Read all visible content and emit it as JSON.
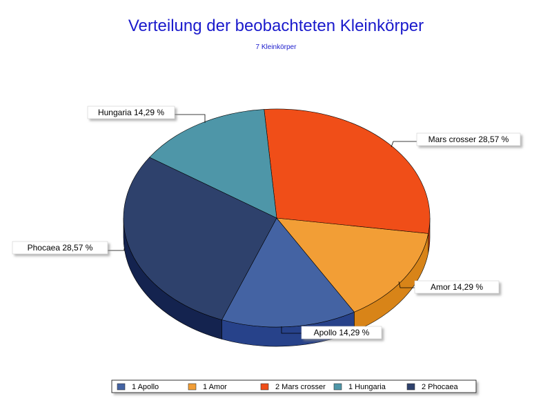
{
  "chart_data": {
    "type": "pie",
    "title": "Verteilung der beobachteten Kleinkörper",
    "subtitle": "7 Kleinkörper",
    "slices": [
      {
        "label": "Apollo 14,29 %",
        "legend": "1 Apollo",
        "value": 1,
        "color": "#4463a3",
        "side_color": "#27428a"
      },
      {
        "label": "Amor 14,29 %",
        "legend": "1 Amor",
        "value": 1,
        "color": "#f29e36",
        "side_color": "#d88418"
      },
      {
        "label": "Mars crosser 28,57 %",
        "legend": "2 Mars crosser",
        "value": 2,
        "color": "#f04e18",
        "side_color": "#c63c10"
      },
      {
        "label": "Hungaria 14,29 %",
        "legend": "1 Hungaria",
        "value": 1,
        "color": "#4e96a8",
        "side_color": "#357a8c"
      },
      {
        "label": "Phocaea 28,57 %",
        "legend": "2 Phocaea",
        "value": 2,
        "color": "#2e416c",
        "side_color": "#14234f"
      }
    ],
    "legend_position": "bottom"
  }
}
